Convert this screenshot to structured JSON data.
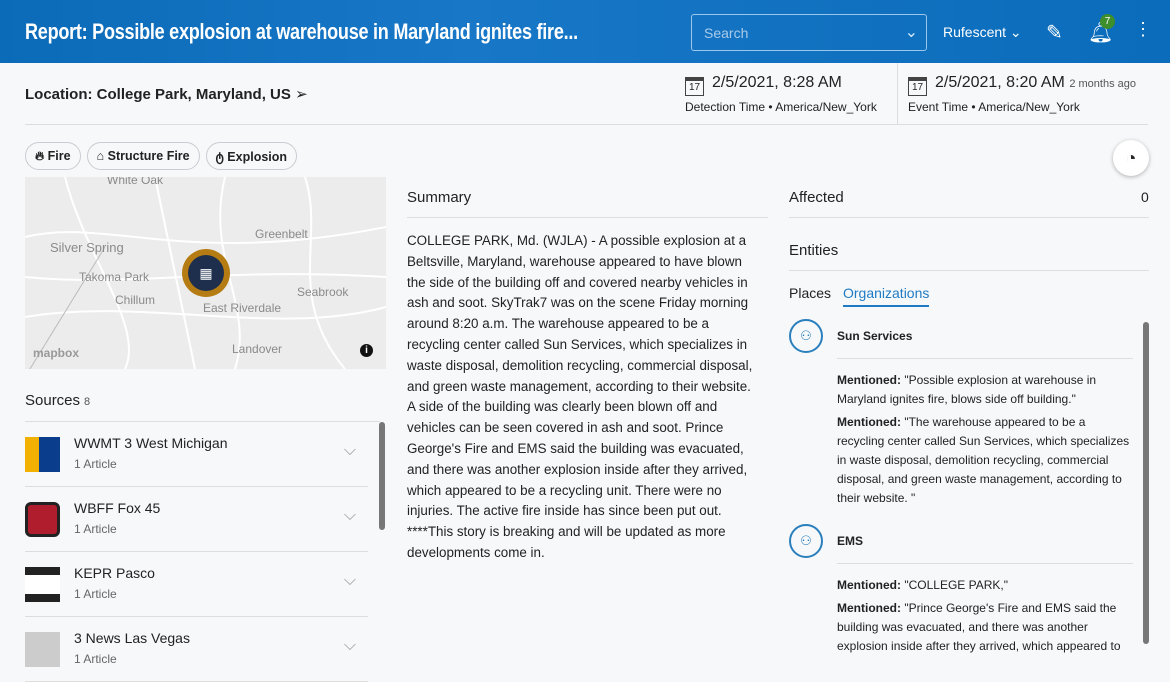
{
  "header": {
    "title": "Report: Possible explosion at warehouse in Maryland ignites fire...",
    "search_placeholder": "Search",
    "user": "Rufescent",
    "notification_count": "7"
  },
  "location": "Location: College Park, Maryland, US",
  "detection": {
    "date": "2/5/2021, 8:28 AM",
    "label": "Detection Time • America/New_York",
    "cal": "17"
  },
  "event": {
    "date": "2/5/2021, 8:20 AM",
    "ago": "2 months ago",
    "label": "Event Time • America/New_York",
    "cal": "17"
  },
  "tags": [
    "Fire",
    "Structure Fire",
    "Explosion"
  ],
  "map": {
    "labels": [
      "White Oak",
      "Silver Spring",
      "Takoma Park",
      "Chillum",
      "Greenbelt",
      "Seabrook",
      "East Riverdale",
      "Landover",
      "mapbox"
    ]
  },
  "sources": {
    "title": "Sources",
    "count": "8",
    "items": [
      {
        "name": "WWMT 3 West Michigan",
        "articles": "1 Article"
      },
      {
        "name": "WBFF Fox 45",
        "articles": "1 Article"
      },
      {
        "name": "KEPR Pasco",
        "articles": "1 Article"
      },
      {
        "name": "3 News Las Vegas",
        "articles": "1 Article"
      }
    ]
  },
  "summary": {
    "title": "Summary",
    "text": "COLLEGE PARK, Md. (WJLA) - A possible explosion at a Beltsville, Maryland, warehouse appeared to have blown the side of the building off and covered nearby vehicles in ash and soot. SkyTrak7 was on the scene Friday morning around 8:20 a.m. The warehouse appeared to be a recycling center called Sun Services, which specializes in waste disposal, demolition recycling, commercial disposal, and green waste management, according to their website. A side of the building was clearly been blown off and vehicles can be seen covered in ash and soot. Prince George's Fire and EMS said the building was evacuated, and there was another explosion inside after they arrived, which appeared to be a recycling unit. There were no injuries. The active fire inside has since been put out. ****This story is breaking and will be updated as more developments come in."
  },
  "affected": {
    "title": "Affected",
    "value": "0"
  },
  "entities": {
    "title": "Entities",
    "tabs": [
      "Places",
      "Organizations"
    ],
    "mention_label": "Mentioned:",
    "orgs": [
      {
        "name": "Sun Services",
        "mentions": [
          "\"Possible explosion at warehouse in Maryland ignites fire, blows side off building.\"",
          "\"The warehouse appeared to be a recycling center called Sun Services, which specializes in waste disposal, demolition recycling, commercial disposal, and green waste management, according to their website. \""
        ]
      },
      {
        "name": "EMS",
        "mentions": [
          "\"COLLEGE PARK,\"",
          "\"Prince George's Fire and EMS said the building was evacuated, and there was another explosion inside after they arrived, which appeared to be a recycling unit.\""
        ]
      }
    ]
  }
}
